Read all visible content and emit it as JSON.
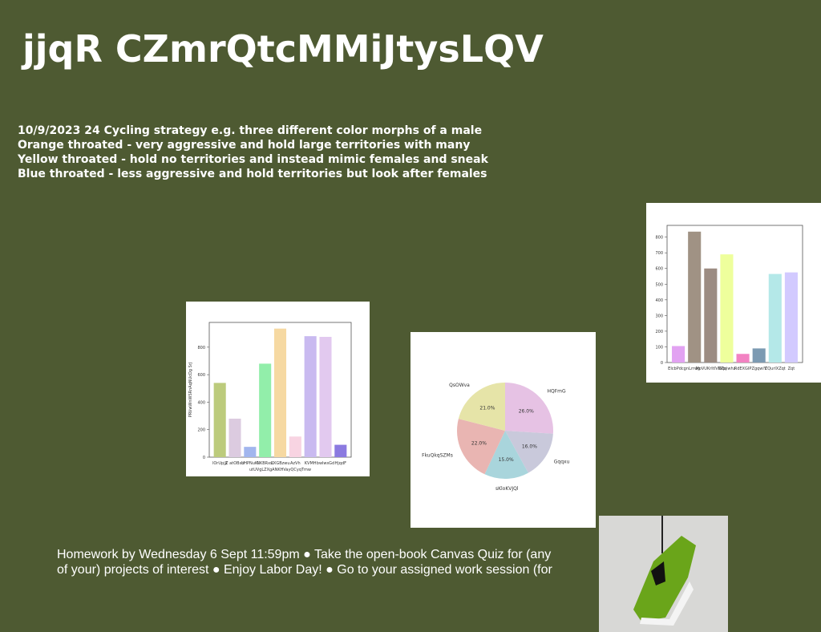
{
  "slide": {
    "title": "jjqR CZmrQtcMMiJtysLQV",
    "notes": [
      "10/9/2023 24 Cycling strategy e.g. three different color morphs of a male",
      "Orange throated - very aggressive and hold large territories with many",
      "Yellow throated - hold no territories and instead mimic females and sneak",
      "Blue throated - less aggressive and hold territories but look after females"
    ],
    "footer": [
      "Homework by Wednesday 6 Sept 11:59pm ● Take the open-book Canvas Quiz for (any",
      "of your) projects of interest ● Enjoy Labor Day! ● Go to your assigned work session (for"
    ]
  },
  "chart_data": [
    {
      "type": "bar",
      "x_label": "utUVgLZXgANKHVayQCyqTmw",
      "y_label": "PRVwWnWSRnAqNUcDg SrJ",
      "categories": [
        "lOrUpjjl",
        "Z atOBsU",
        "bHPNuKl",
        "NKBRxsi",
        "CXGBzwu",
        "AzVh",
        "KVMH",
        "bwlwsGd",
        "HjqdF"
      ],
      "values": [
        540,
        280,
        75,
        680,
        935,
        150,
        880,
        875,
        90
      ],
      "colors": [
        "#bccb7c",
        "#dccbe0",
        "#a2b6ee",
        "#92eeaa",
        "#f6d9a2",
        "#f8d4e2",
        "#c9baf0",
        "#e2c9ef",
        "#8b7ae0"
      ],
      "ylim": [
        0,
        980
      ],
      "yticks": [
        0,
        200,
        400,
        600,
        800
      ]
    },
    {
      "type": "pie",
      "categories": [
        "HQFmG",
        "Gqqxu",
        "sKloKVJQl",
        "FkuQkqSZMs",
        "QsOWva"
      ],
      "values": [
        26,
        16,
        15,
        22,
        21
      ],
      "value_labels": [
        "26.0%",
        "16.0%",
        "15.0%",
        "22.0%",
        "21.0%"
      ],
      "colors": [
        "#e6c2e4",
        "#c9c9db",
        "#a9d5dc",
        "#e9b5b2",
        "#e6e4a8"
      ]
    },
    {
      "type": "bar",
      "categories": [
        "EIcbPdcgn",
        "Lrrwg",
        "MoVUKrItIVKPp",
        "DZqiwhz",
        "RdEXGIP",
        "ZgqwiY",
        "ZQurlXZqt",
        "Zqt"
      ],
      "values": [
        105,
        835,
        600,
        690,
        55,
        90,
        565,
        575
      ],
      "colors": [
        "#e2a2f2",
        "#a09284",
        "#9c8c82",
        "#eeff9c",
        "#f282c2",
        "#7c9ab2",
        "#b4e8e8",
        "#d2caff"
      ],
      "ylim": [
        0,
        875
      ],
      "yticks": [
        0,
        100,
        200,
        300,
        400,
        500,
        600,
        700,
        800
      ]
    }
  ]
}
